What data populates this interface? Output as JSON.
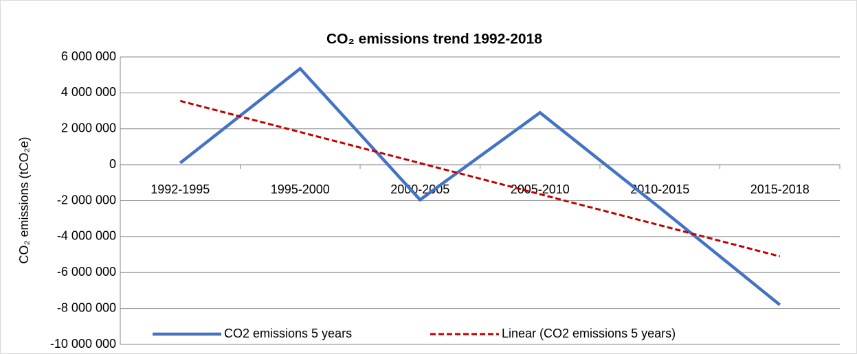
{
  "chart_data": {
    "type": "line",
    "title": "CO₂ emissions trend 1992-2018",
    "y_label": "CO₂ emissions (tCO₂e)",
    "categories": [
      "1992-1995",
      "1995-2000",
      "2000-2005",
      "2005-2010",
      "2010-2015",
      "2015-2018"
    ],
    "series": [
      {
        "name": "CO2 emissions 5 years",
        "color": "#4472c4",
        "dash": false,
        "values": [
          100000,
          5350000,
          -1950000,
          2900000,
          -2400000,
          -7800000
        ]
      },
      {
        "name": "Linear (CO2 emissions 5 years)",
        "color": "#c00000",
        "dash": true,
        "values": [
          3550000,
          1820000,
          90000,
          -1640000,
          -3370000,
          -5100000
        ]
      }
    ],
    "ylim": [
      -10000000,
      6000000
    ],
    "yticks": [
      {
        "value": -10000000,
        "label": "-10 000 000"
      },
      {
        "value": -8000000,
        "label": "-8 000 000"
      },
      {
        "value": -6000000,
        "label": "-6 000 000"
      },
      {
        "value": -4000000,
        "label": "-4 000 000"
      },
      {
        "value": -2000000,
        "label": "-2 000 000"
      },
      0,
      {
        "value": 2000000,
        "label": "2 000 000"
      },
      {
        "value": 4000000,
        "label": "4 000 000"
      },
      {
        "value": 6000000,
        "label": "6 000 000"
      }
    ],
    "grid": true,
    "legend": "bottom"
  }
}
